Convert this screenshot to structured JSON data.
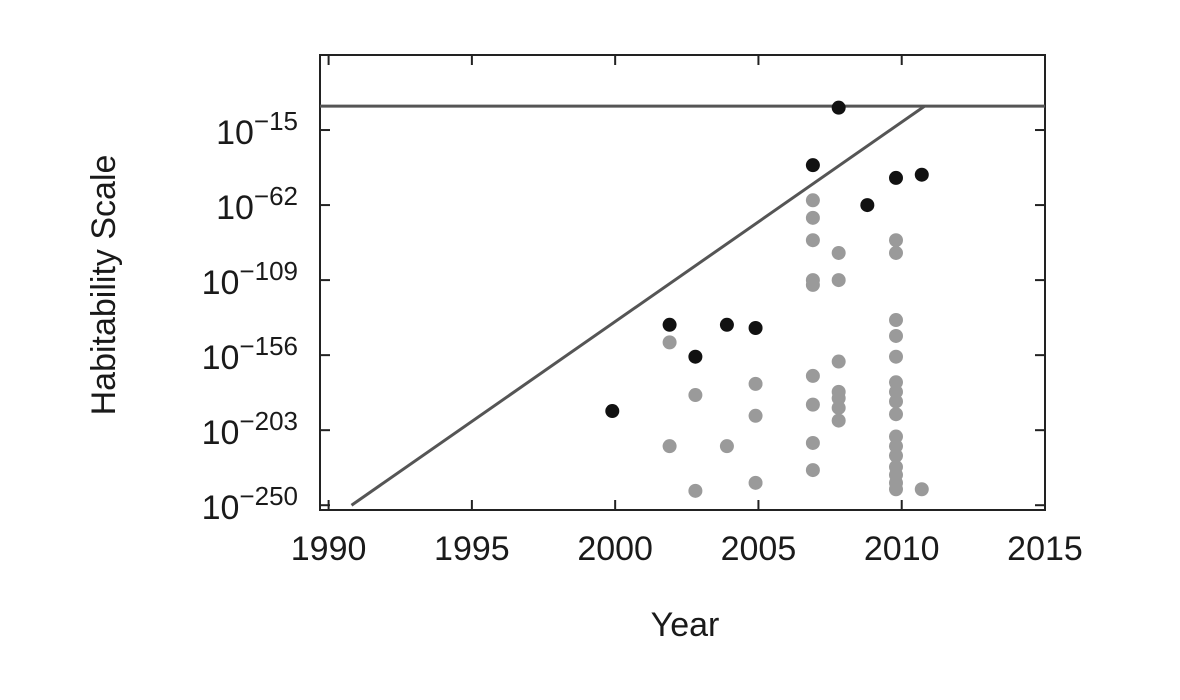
{
  "chart_data": {
    "type": "scatter",
    "x_label": "Year",
    "y_label": "Habitability Scale",
    "log_scale_y": true,
    "xlim": [
      1989.7,
      2015
    ],
    "ylim": [
      1e-253,
      1e+32
    ],
    "xticks": [
      1990,
      1995,
      2000,
      2005,
      2010,
      2015
    ],
    "yticks": [
      {
        "value": 1e-250,
        "label": "10−250"
      },
      {
        "value": 1e-203,
        "label": "10−203"
      },
      {
        "value": 1e-156,
        "label": "10−156"
      },
      {
        "value": 1e-109,
        "label": "10−109"
      },
      {
        "value": 1e-62,
        "label": "10−62"
      },
      {
        "value": 1e-15,
        "label": "10−15"
      }
    ],
    "series": [
      {
        "style": "line",
        "color": "#555555",
        "x": [
          1989.7,
          2015
        ],
        "values": [
          1,
          1
        ]
      },
      {
        "style": "line",
        "color": "#555555",
        "x": [
          1990.8,
          2010.8
        ],
        "values": [
          1e-250,
          1
        ]
      },
      {
        "style": "points",
        "color": "#9a9a9a",
        "x": [
          2001.9,
          2001.9,
          2002.8,
          2002.8,
          2003.9,
          2004.9,
          2004.9,
          2004.9,
          2006.9,
          2006.9,
          2006.9,
          2006.9,
          2006.9,
          2006.9,
          2006.9,
          2006.9,
          2006.9,
          2007.8,
          2007.8,
          2007.8,
          2007.8,
          2007.8,
          2007.8,
          2007.8,
          2009.8,
          2009.8,
          2009.8,
          2009.8,
          2009.8,
          2009.8,
          2009.8,
          2009.8,
          2009.8,
          2009.8,
          2009.8,
          2009.8,
          2009.8,
          2009.8,
          2009.8,
          2009.8,
          2010.7
        ],
        "values": [
          1e-148,
          1e-213,
          1e-181,
          1e-241,
          1e-213,
          1e-174,
          1e-194,
          1e-236,
          1e-59,
          1e-70,
          1e-84,
          1e-109,
          1e-112,
          1e-169,
          1e-187,
          1e-211,
          1e-228,
          1e-92,
          1e-109,
          1e-160,
          1e-179,
          1e-183,
          1e-189,
          1e-197,
          1e-84,
          1e-92,
          1e-134,
          1e-144,
          1e-157,
          1e-173,
          1e-179,
          1e-185,
          1e-193,
          1e-207,
          1e-213,
          1e-219,
          1e-226,
          1e-231,
          1e-236,
          1e-240,
          1e-240
        ]
      },
      {
        "style": "points",
        "color": "#111111",
        "x": [
          1999.9,
          2001.9,
          2002.8,
          2003.9,
          2004.9,
          2006.9,
          2007.8,
          2008.8,
          2009.8,
          2010.7
        ],
        "values": [
          1e-191,
          1e-137,
          1e-157,
          1e-137,
          1e-139,
          1e-37,
          0.1,
          1e-62,
          1e-45,
          1e-43
        ]
      }
    ]
  }
}
